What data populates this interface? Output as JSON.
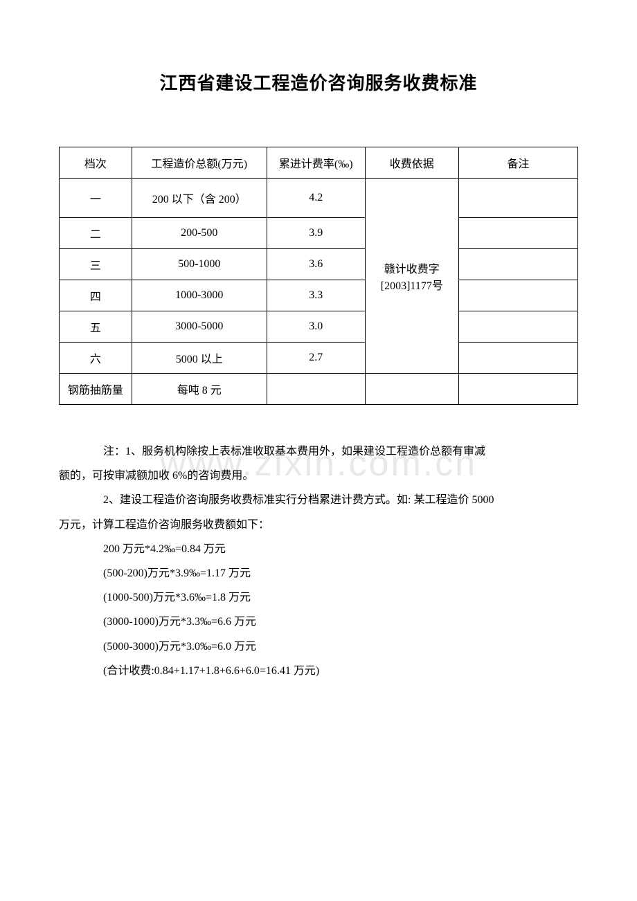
{
  "title": "江西省建设工程造价咨询服务收费标准",
  "watermark": "www.zixin.com.cn",
  "table": {
    "headers": {
      "col1": "档次",
      "col2": "工程造价总额(万元)",
      "col3": "累进计费率(‰)",
      "col4": "收费依据",
      "col5": "备注"
    },
    "basis": "赣计收费字[2003]1177号",
    "rows": [
      {
        "tier": "一",
        "range": "200 以下（含 200）",
        "rate": "4.2",
        "note": ""
      },
      {
        "tier": "二",
        "range": "200-500",
        "rate": "3.9",
        "note": ""
      },
      {
        "tier": "三",
        "range": "500-1000",
        "rate": "3.6",
        "note": ""
      },
      {
        "tier": "四",
        "range": "1000-3000",
        "rate": "3.3",
        "note": ""
      },
      {
        "tier": "五",
        "range": "3000-5000",
        "rate": "3.0",
        "note": ""
      },
      {
        "tier": "六",
        "range": "5000 以上",
        "rate": "2.7",
        "note": ""
      }
    ],
    "last_row": {
      "tier": "钢筋抽筋量",
      "range": "每吨 8 元",
      "rate": "",
      "basis": "",
      "note": ""
    }
  },
  "notes": {
    "note1_part1": "注：1、服务机构除按上表标准收取基本费用外，如果建设工程造价总额有审减",
    "note1_part2": "额的，可按审减额加收 6%的咨询费用。",
    "note2_part1": "2、建设工程造价咨询服务收费标准实行分档累进计费方式。如: 某工程造价 5000",
    "note2_part2": "万元，计算工程造价咨询服务收费额如下：",
    "calc1": "200 万元*4.2‰=0.84 万元",
    "calc2": "(500-200)万元*3.9‰=1.17 万元",
    "calc3": "(1000-500)万元*3.6‰=1.8 万元",
    "calc4": "(3000-1000)万元*3.3‰=6.6 万元",
    "calc5": "(5000-3000)万元*3.0‰=6.0 万元",
    "calc6": "(合计收费:0.84+1.17+1.8+6.6+6.0=16.41 万元)"
  }
}
